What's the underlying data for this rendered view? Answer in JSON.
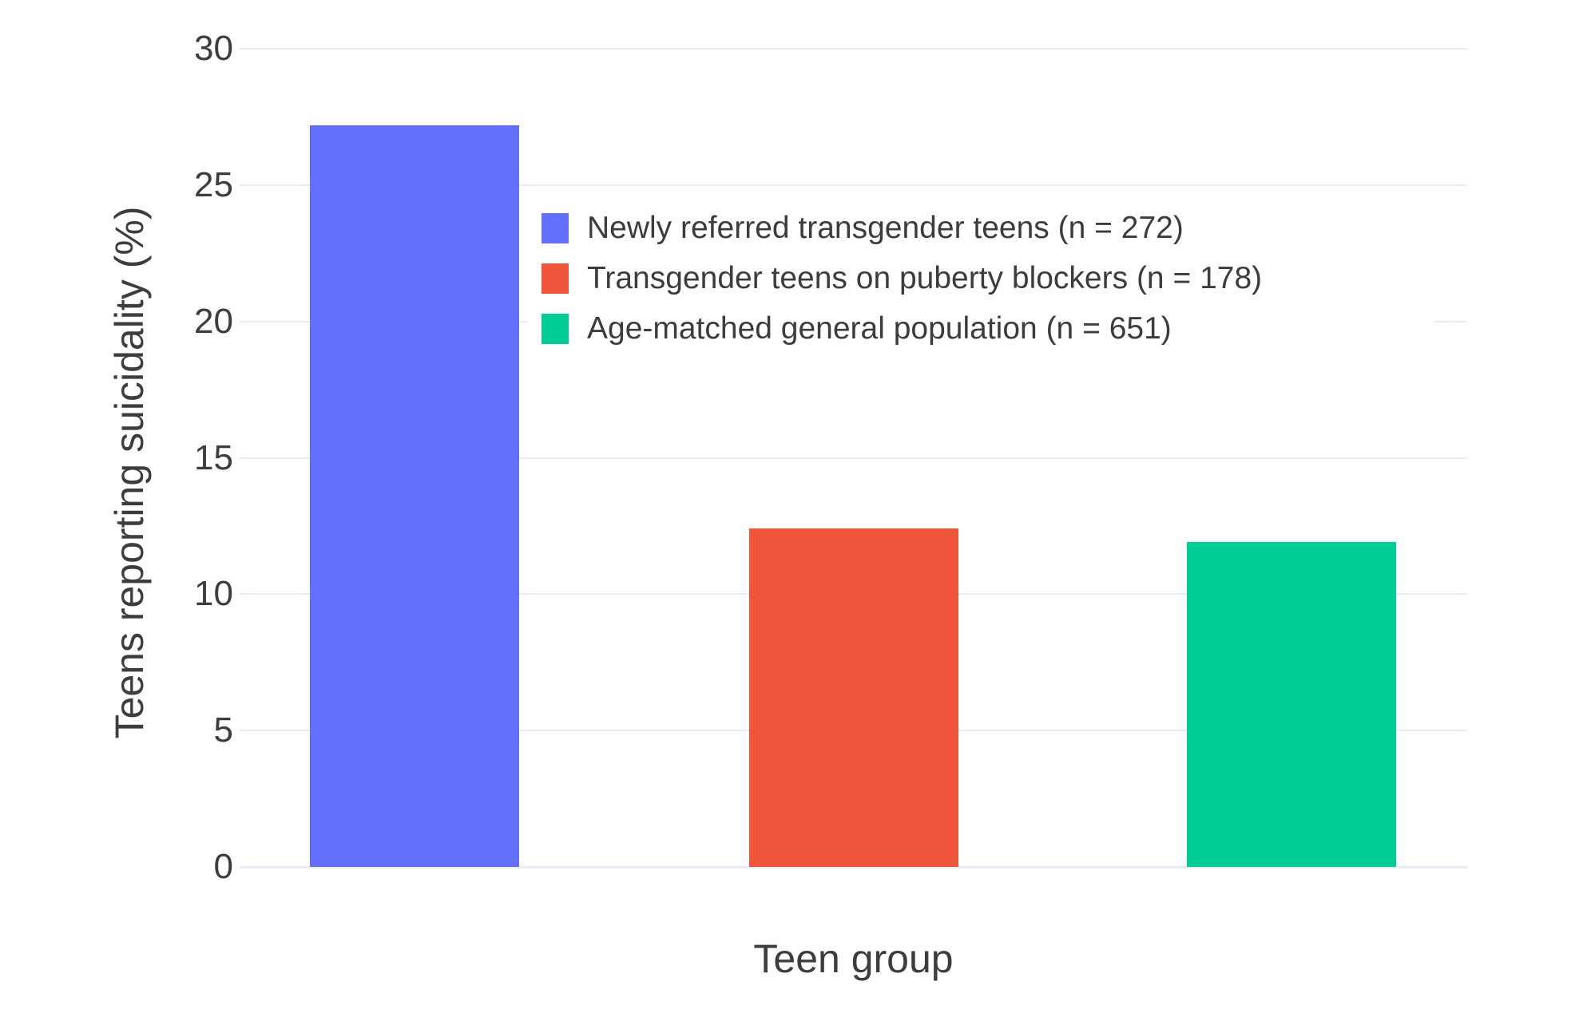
{
  "chart_data": {
    "type": "bar",
    "title": "",
    "xlabel": "Teen group",
    "ylabel": "Teens reporting suicidality (%)",
    "ylim": [
      0,
      30
    ],
    "yticks": [
      0,
      5,
      10,
      15,
      20,
      25,
      30
    ],
    "grid": true,
    "legend_position": "inside top-center",
    "bars": [
      {
        "label": "Newly referred transgender teens (n = 272)",
        "value": 27.2,
        "color": "#636EFA"
      },
      {
        "label": "Transgender teens on puberty blockers (n = 178)",
        "value": 12.4,
        "color": "#EF553B"
      },
      {
        "label": "Age-matched general population (n = 651)",
        "value": 11.9,
        "color": "#00CC96"
      }
    ]
  },
  "colors": {
    "grid": "#E8ECF5",
    "text": "#3C3D40",
    "background": "#FFFFFF"
  }
}
